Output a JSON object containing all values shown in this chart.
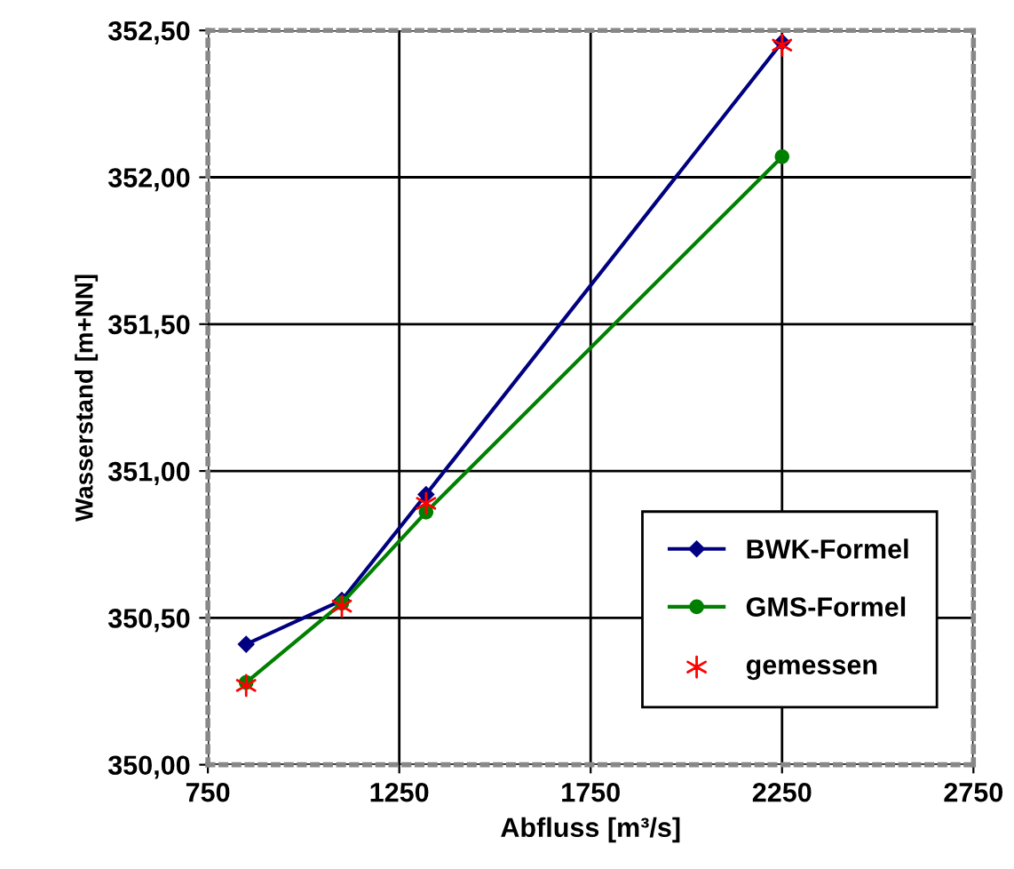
{
  "chart_data": {
    "type": "line",
    "xlabel": "Abfluss [m³/s]",
    "ylabel": "Wasserstand [m+NN]",
    "xlim": [
      750,
      2750
    ],
    "xticks": [
      750,
      1250,
      1750,
      2250,
      2750
    ],
    "ylim": [
      350.0,
      352.5
    ],
    "yticks": [
      {
        "value": 350.0,
        "label": "350,00"
      },
      {
        "value": 350.5,
        "label": "350,50"
      },
      {
        "value": 351.0,
        "label": "351,00"
      },
      {
        "value": 351.5,
        "label": "351,50"
      },
      {
        "value": 352.0,
        "label": "352,00"
      },
      {
        "value": 352.5,
        "label": "352,50"
      }
    ],
    "grid": true,
    "legend": "bottom right",
    "series": [
      {
        "name": "BWK-Formel",
        "color": "#000080",
        "marker": "diamond",
        "x": [
          850,
          1100,
          1320,
          2250
        ],
        "values": [
          350.41,
          350.56,
          350.92,
          352.46
        ]
      },
      {
        "name": "GMS-Formel",
        "color": "#008000",
        "marker": "circle",
        "x": [
          850,
          1100,
          1320,
          2250
        ],
        "values": [
          350.28,
          350.55,
          350.86,
          352.07
        ]
      },
      {
        "name": "gemessen",
        "type": "scatter",
        "color": "#ff0000",
        "marker": "cross",
        "x": [
          850,
          1100,
          1320,
          2250
        ],
        "values": [
          350.27,
          350.54,
          350.89,
          352.45
        ]
      }
    ]
  }
}
